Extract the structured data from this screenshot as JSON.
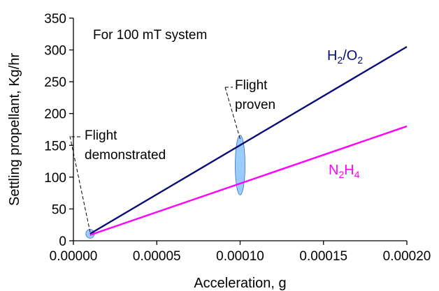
{
  "chart_data": {
    "type": "line",
    "xlabel": "Acceleration, g",
    "ylabel": "Settling propellant, Kg/hr",
    "xlim": [
      0,
      0.0002
    ],
    "ylim": [
      0,
      350
    ],
    "x_ticks": [
      "0.00000",
      "0.00005",
      "0.00010",
      "0.00015",
      "0.00020"
    ],
    "y_ticks": [
      "0",
      "50",
      "100",
      "150",
      "200",
      "250",
      "300",
      "350"
    ],
    "grid": false,
    "note": "For 100 mT system",
    "series": [
      {
        "name": "H2/O2",
        "label_parts": [
          "H",
          "2",
          "/O",
          "2"
        ],
        "color": "#0a0a78",
        "x": [
          1e-05,
          0.0002
        ],
        "y": [
          11,
          305
        ]
      },
      {
        "name": "N2H4",
        "label_parts": [
          "N",
          "2",
          "H",
          "4"
        ],
        "color": "#ff00ff",
        "x": [
          1e-05,
          0.0002
        ],
        "y": [
          9,
          180
        ]
      }
    ],
    "regions": [
      {
        "name": "Flight demonstrated",
        "x": 1e-05,
        "y_low": 4,
        "y_high": 18,
        "color": "#99ccff"
      },
      {
        "name": "Flight proven",
        "x": 0.0001,
        "y_low": 72,
        "y_high": 166,
        "color": "#99ccff"
      }
    ],
    "annotations": [
      {
        "lines": [
          "Flight",
          "demonstrated"
        ],
        "target_x": 1e-05,
        "target_y": 14
      },
      {
        "lines": [
          "Flight",
          "proven"
        ],
        "target_x": 0.0001,
        "target_y": 160
      }
    ]
  }
}
